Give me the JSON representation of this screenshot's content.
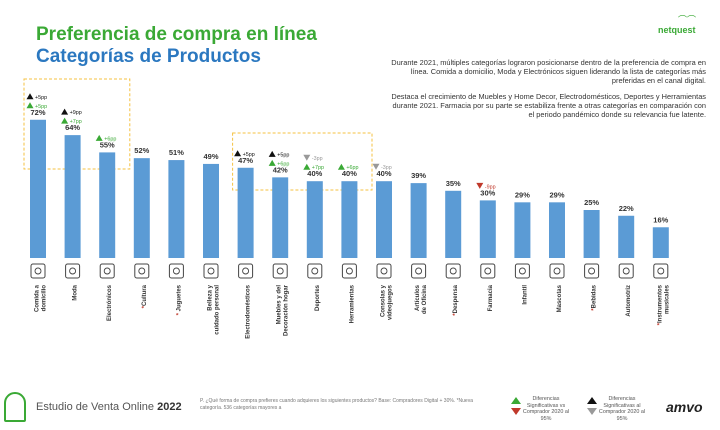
{
  "header": {
    "title_line1": "Preferencia de compra en línea",
    "title_line2": "Categorías de Productos",
    "brand": "netquest"
  },
  "description": {
    "p1": "Durante 2021, múltiples categorías lograron posicionarse dentro de la preferencia de compra en línea. Comida a domicilio, Moda y Electrónicos siguen liderando la lista de categorías más preferidas en el canal digital.",
    "p2": "Destaca el crecimiento de Muebles y Home Decor, Electrodomésticos, Deportes y Herramientas durante 2021. Farmacia por su parte se estabiliza frente a otras categorías en comparación con el periodo pandémico donde su relevancia fue latente."
  },
  "colors": {
    "bar": "#5b9bd5",
    "green": "#3aa935",
    "title_blue": "#2b78c0",
    "red": "#c0392b",
    "gray_marker": "#999999",
    "highlight_box": "#f5c242"
  },
  "chart_data": {
    "type": "bar",
    "categories": [
      "Comida a domicilio",
      "Moda",
      "Electrónicos",
      "*Cultura",
      "* Juguetes",
      "Belleza y cuidado personal",
      "Electrodomésticos",
      "Muebles y Decoración del hogar",
      "Deportes",
      "Herramientas",
      "Consolas y videojuegos",
      "Artículos de Oficina",
      "*Despensa",
      "Farmacia",
      "Infantil",
      "Mascotas",
      "*Bebidas",
      "Automotriz",
      "*Instrumentos musicales"
    ],
    "values": [
      72,
      64,
      55,
      52,
      51,
      49,
      47,
      42,
      40,
      40,
      40,
      39,
      35,
      30,
      29,
      29,
      25,
      22,
      16
    ],
    "value_labels": [
      "72%",
      "64%",
      "55%",
      "52%",
      "51%",
      "49%",
      "47%",
      "42%",
      "40%",
      "40%",
      "40%",
      "39%",
      "35%",
      "30%",
      "29%",
      "29%",
      "25%",
      "22%",
      "16%"
    ],
    "markers": [
      [
        {
          "dir": "up",
          "color": "black",
          "text": "+5pp"
        },
        {
          "dir": "up",
          "color": "green",
          "text": "+5pp"
        }
      ],
      [
        {
          "dir": "up",
          "color": "black",
          "text": "+9pp"
        },
        {
          "dir": "up",
          "color": "green",
          "text": "+7pp"
        }
      ],
      [
        {
          "dir": "up",
          "color": "green",
          "text": "+6pp"
        }
      ],
      [],
      [],
      [],
      [
        {
          "dir": "up",
          "color": "black",
          "text": "+5pp"
        }
      ],
      [
        {
          "dir": "up",
          "color": "black",
          "text": "+5pp"
        },
        {
          "dir": "up",
          "color": "green",
          "text": "+6pp"
        }
      ],
      [
        {
          "dir": "down",
          "color": "gray",
          "text": "-3pp"
        },
        {
          "dir": "up",
          "color": "green",
          "text": "+7pp"
        }
      ],
      [
        {
          "dir": "up",
          "color": "green",
          "text": "+6pp"
        }
      ],
      [
        {
          "dir": "down",
          "color": "gray",
          "text": "-3pp"
        }
      ],
      [],
      [],
      [
        {
          "dir": "down",
          "color": "red",
          "text": "-9pp"
        }
      ],
      [],
      [],
      [],
      [],
      []
    ],
    "ylim": [
      0,
      80
    ],
    "grid": false
  },
  "footer": {
    "study_prefix": "Estudio de Venta Online ",
    "study_year": "2022",
    "note": "P. ¿Qué forma de compra prefieres cuando adquieres los siguientes productos? Base: Compradores Digital + 30%. *Nueva categoría. 536 categorías mayores a",
    "legend1": "Diferencias Significativas vs Comprador 2020 al 95%",
    "legend2": "Diferencias Significativas al Comprador 2020 al 95%",
    "amvo": "amvo"
  }
}
